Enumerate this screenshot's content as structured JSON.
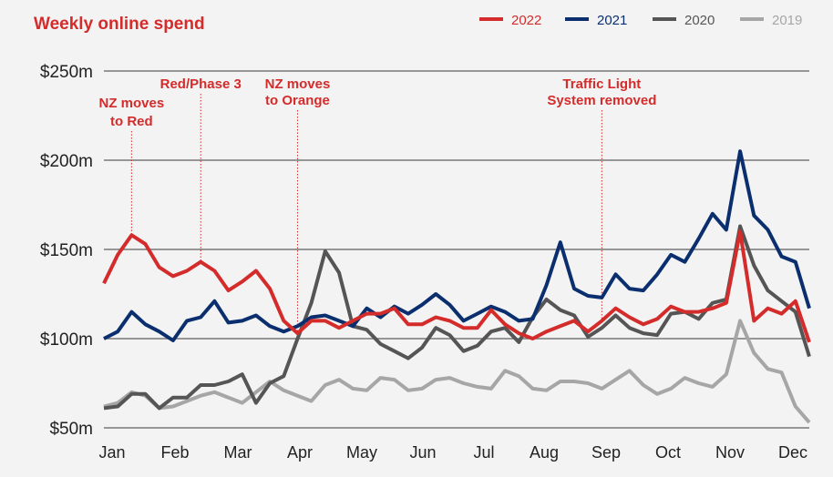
{
  "chart_data": {
    "type": "line",
    "title": "Weekly online spend",
    "xlabel": "",
    "ylabel": "",
    "ylim": [
      50,
      250
    ],
    "yticks": [
      "$50m",
      "$100m",
      "$150m",
      "$200m",
      "$250m"
    ],
    "ytick_values": [
      50,
      100,
      150,
      200,
      250
    ],
    "x_tick_labels": [
      "Jan",
      "Feb",
      "Mar",
      "Apr",
      "May",
      "Jun",
      "Jul",
      "Aug",
      "Sep",
      "Oct",
      "Nov",
      "Dec"
    ],
    "x_unit": "week of year (52 weeks)",
    "grid": "horizontal",
    "legend": "top-right",
    "series": [
      {
        "name": "2022",
        "color": "#d42b2b",
        "values": [
          131,
          147,
          158,
          153,
          140,
          135,
          138,
          143,
          138,
          127,
          132,
          138,
          128,
          110,
          103,
          110,
          110,
          106,
          110,
          114,
          114,
          117,
          108,
          108,
          112,
          110,
          106,
          106,
          116,
          108,
          103,
          100,
          104,
          107,
          110,
          104,
          110,
          117,
          112,
          108,
          111,
          118,
          115,
          115,
          117,
          120,
          160,
          110,
          117,
          114,
          121,
          98
        ]
      },
      {
        "name": "2021",
        "color": "#0b2f6e",
        "values": [
          100,
          104,
          115,
          108,
          104,
          99,
          110,
          112,
          121,
          109,
          110,
          113,
          107,
          104,
          107,
          112,
          113,
          110,
          107,
          117,
          112,
          118,
          114,
          119,
          125,
          119,
          110,
          114,
          118,
          115,
          110,
          111,
          130,
          154,
          128,
          124,
          123,
          136,
          128,
          127,
          136,
          147,
          143,
          156,
          170,
          161,
          205,
          169,
          161,
          146,
          143,
          117
        ]
      },
      {
        "name": "2020",
        "color": "#555555",
        "values": [
          61,
          62,
          69,
          69,
          61,
          67,
          67,
          74,
          74,
          76,
          80,
          64,
          75,
          79,
          100,
          120,
          149,
          137,
          107,
          105,
          97,
          93,
          89,
          95,
          106,
          102,
          93,
          96,
          104,
          106,
          98,
          112,
          122,
          116,
          113,
          101,
          106,
          113,
          106,
          103,
          102,
          114,
          115,
          111,
          120,
          122,
          163,
          141,
          127,
          121,
          115,
          90
        ]
      },
      {
        "name": "2019",
        "color": "#a6a6a6",
        "values": [
          62,
          64,
          70,
          68,
          61,
          62,
          65,
          68,
          70,
          67,
          64,
          70,
          76,
          71,
          68,
          65,
          74,
          77,
          72,
          71,
          78,
          77,
          71,
          72,
          77,
          78,
          75,
          73,
          72,
          82,
          79,
          72,
          71,
          76,
          76,
          75,
          72,
          77,
          82,
          74,
          69,
          72,
          78,
          75,
          73,
          80,
          110,
          92,
          83,
          81,
          62,
          53
        ]
      }
    ],
    "annotations": [
      {
        "lines": [
          "NZ moves",
          "to Red"
        ],
        "week": 2
      },
      {
        "lines": [
          "Red/Phase 3"
        ],
        "week": 7
      },
      {
        "lines": [
          "NZ moves",
          "to Orange"
        ],
        "week": 14
      },
      {
        "lines": [
          "Traffic Light",
          "System removed"
        ],
        "week": 36
      }
    ]
  }
}
